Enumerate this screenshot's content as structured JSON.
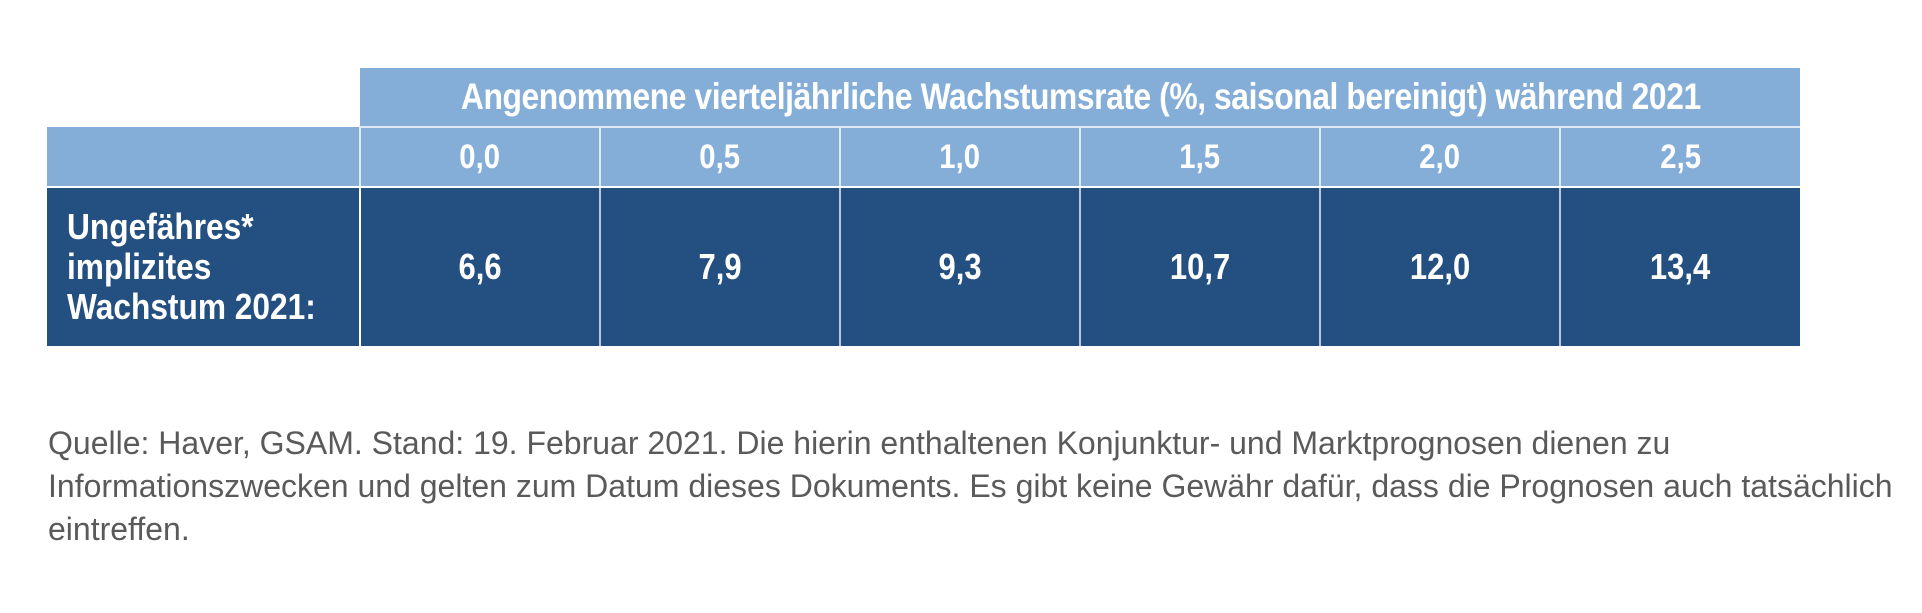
{
  "chart_data": {
    "type": "table",
    "header": "Angenommene vierteljährliche Wachstumsrate (%, saisonal bereinigt) während 2021",
    "columns": [
      "0,0",
      "0,5",
      "1,0",
      "1,5",
      "2,0",
      "2,5"
    ],
    "rows": [
      {
        "label_lines": [
          "Ungefähres*",
          "implizites",
          "Wachstum 2021:"
        ],
        "values": [
          "6,6",
          "7,9",
          "9,3",
          "10,7",
          "12,0",
          "13,4"
        ]
      }
    ]
  },
  "source_note": "Quelle: Haver, GSAM. Stand: 19. Februar 2021. Die hierin enthaltenen Konjunktur- und Marktprognosen dienen zu Informationszwecken und gelten zum Datum dieses Dokuments. Es gibt keine Gewähr dafür, dass die Prognosen auch tatsächlich eintreffen.",
  "colors": {
    "header_light_blue": "#84aed7",
    "body_dark_blue": "#234f81",
    "header_text": "#ffffff",
    "source_text": "#5a5a5a"
  }
}
